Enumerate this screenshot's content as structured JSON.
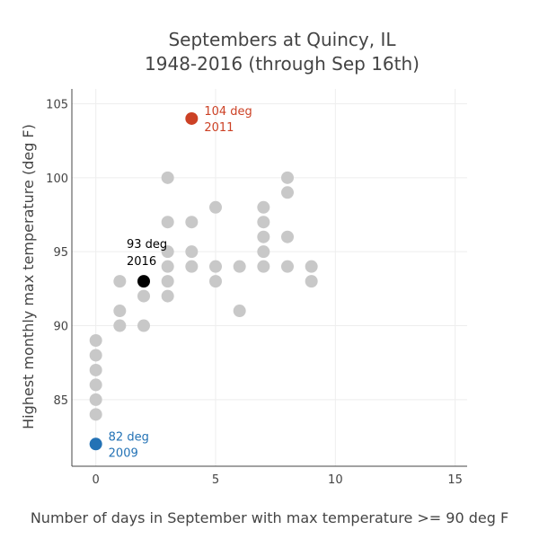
{
  "chart_data": {
    "type": "scatter",
    "title_line1": "Septembers at Quincy, IL",
    "title_line2": "1948-2016 (through Sep 16th)",
    "xlabel": "Number of days in September with max temperature >= 90 deg F",
    "ylabel": "Highest monthly max temperature (deg F)",
    "xlim": [
      -1,
      15.5
    ],
    "ylim": [
      80.5,
      106
    ],
    "x_ticks": [
      0,
      5,
      10,
      15
    ],
    "y_ticks": [
      85,
      90,
      95,
      100,
      105
    ],
    "grid": true,
    "colors": {
      "default": "#c8c8c8",
      "current": "#000000",
      "max": "#cc4125",
      "min": "#2372b5",
      "grid": "#eeeeee",
      "axis": "#444444"
    },
    "points": [
      {
        "x": 0,
        "y": 89
      },
      {
        "x": 0,
        "y": 88
      },
      {
        "x": 0,
        "y": 87
      },
      {
        "x": 0,
        "y": 86
      },
      {
        "x": 0,
        "y": 85
      },
      {
        "x": 0,
        "y": 84
      },
      {
        "x": 1,
        "y": 93
      },
      {
        "x": 1,
        "y": 91
      },
      {
        "x": 1,
        "y": 90
      },
      {
        "x": 2,
        "y": 92
      },
      {
        "x": 2,
        "y": 90
      },
      {
        "x": 3,
        "y": 100
      },
      {
        "x": 3,
        "y": 97
      },
      {
        "x": 3,
        "y": 95
      },
      {
        "x": 3,
        "y": 94
      },
      {
        "x": 3,
        "y": 93
      },
      {
        "x": 3,
        "y": 92
      },
      {
        "x": 4,
        "y": 97
      },
      {
        "x": 4,
        "y": 95
      },
      {
        "x": 4,
        "y": 94
      },
      {
        "x": 5,
        "y": 98
      },
      {
        "x": 5,
        "y": 94
      },
      {
        "x": 5,
        "y": 93
      },
      {
        "x": 6,
        "y": 94
      },
      {
        "x": 6,
        "y": 91
      },
      {
        "x": 7,
        "y": 98
      },
      {
        "x": 7,
        "y": 97
      },
      {
        "x": 7,
        "y": 96
      },
      {
        "x": 7,
        "y": 95
      },
      {
        "x": 7,
        "y": 94
      },
      {
        "x": 8,
        "y": 100
      },
      {
        "x": 8,
        "y": 99
      },
      {
        "x": 8,
        "y": 96
      },
      {
        "x": 8,
        "y": 94
      },
      {
        "x": 9,
        "y": 94
      },
      {
        "x": 9,
        "y": 93
      }
    ],
    "highlights": [
      {
        "key": "current",
        "x": 2,
        "y": 93,
        "label_line1": "93 deg",
        "label_line2": "2016",
        "color": "#000000",
        "label_pos": "above"
      },
      {
        "key": "max",
        "x": 4,
        "y": 104,
        "label_line1": "104 deg",
        "label_line2": "2011",
        "color": "#cc4125",
        "label_pos": "right"
      },
      {
        "key": "min",
        "x": 0,
        "y": 82,
        "label_line1": "82 deg",
        "label_line2": "2009",
        "color": "#2372b5",
        "label_pos": "right"
      }
    ]
  }
}
